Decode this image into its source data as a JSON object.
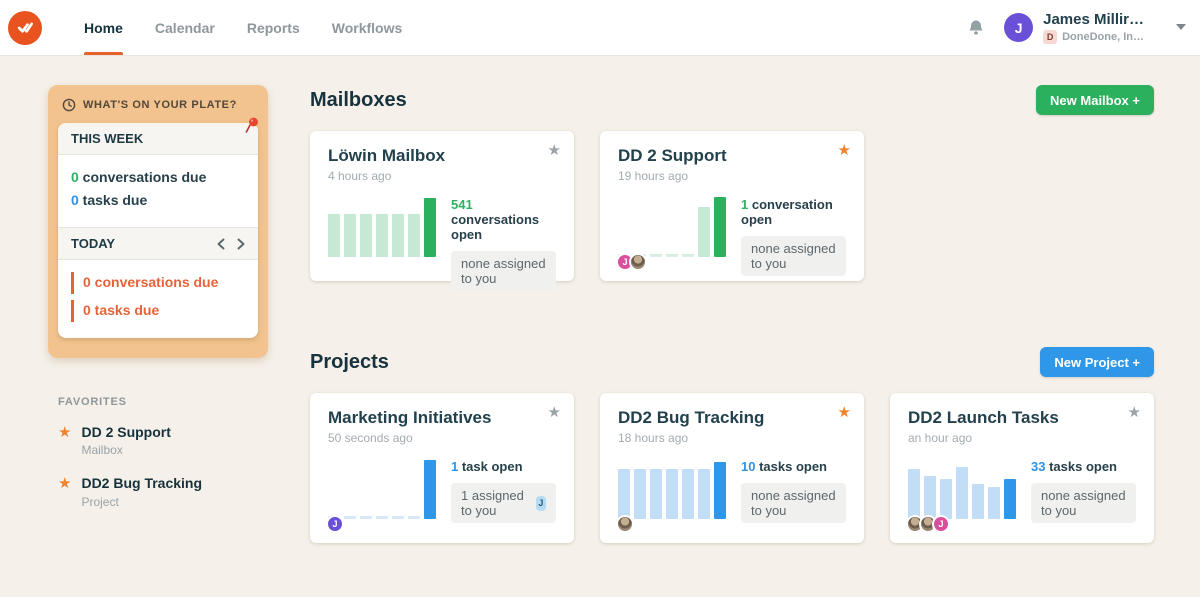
{
  "icons": {
    "star": "★",
    "caret_down": "▾"
  },
  "colors": {
    "accent_orange": "#e8602c",
    "accent_green": "#2bb05e",
    "accent_blue": "#2f97e8",
    "plate_bg": "#f2c38e",
    "avatar_purple": "#6a4fd7",
    "avatar_pink": "#d94f9e"
  },
  "header": {
    "nav": [
      {
        "label": "Home"
      },
      {
        "label": "Calendar"
      },
      {
        "label": "Reports"
      },
      {
        "label": "Workflows"
      }
    ],
    "user": {
      "initial": "J",
      "name": "James Millir…",
      "org_badge": "D",
      "org": "DoneDone, In…"
    }
  },
  "plate": {
    "title": "WHAT'S ON YOUR PLATE?",
    "this_week": {
      "label": "THIS WEEK",
      "items": [
        {
          "count": "0",
          "text": " conversations due"
        },
        {
          "count": "0",
          "text": " tasks due"
        }
      ]
    },
    "today": {
      "label": "TODAY",
      "items": [
        {
          "text": "0 conversations due"
        },
        {
          "text": "0 tasks due"
        }
      ]
    }
  },
  "favorites": {
    "label": "FAVORITES",
    "items": [
      {
        "title": "DD 2 Support",
        "type": "Mailbox"
      },
      {
        "title": "DD2 Bug Tracking",
        "type": "Project"
      }
    ]
  },
  "mailboxes": {
    "title": "Mailboxes",
    "button": "New Mailbox +",
    "cards": [
      {
        "title": "Löwin Mailbox",
        "time": "4 hours ago",
        "favorited": false,
        "stat_count": "541",
        "stat_text": " conversations open",
        "pill": "none assigned to you",
        "chart": {
          "bars": [
            {
              "t": "light",
              "h": 0.7
            },
            {
              "t": "light",
              "h": 0.7
            },
            {
              "t": "light",
              "h": 0.7
            },
            {
              "t": "light",
              "h": 0.7
            },
            {
              "t": "light",
              "h": 0.7
            },
            {
              "t": "light",
              "h": 0.7
            },
            {
              "t": "solid",
              "h": 0.95
            }
          ]
        },
        "avatars": []
      },
      {
        "title": "DD 2 Support",
        "time": "19 hours ago",
        "favorited": true,
        "stat_count": "1",
        "stat_text": " conversation open",
        "pill": "none assigned to you",
        "chart": {
          "bars": [
            {
              "t": "empty",
              "h": 0
            },
            {
              "t": "empty",
              "h": 0
            },
            {
              "t": "empty",
              "h": 0
            },
            {
              "t": "empty",
              "h": 0
            },
            {
              "t": "empty",
              "h": 0
            },
            {
              "t": "light",
              "h": 0.8
            },
            {
              "t": "solid",
              "h": 0.97
            }
          ]
        },
        "avatars": [
          {
            "kind": "initial",
            "letter": "J",
            "bg": "#d94f9e"
          },
          {
            "kind": "photo"
          }
        ]
      }
    ]
  },
  "projects": {
    "title": "Projects",
    "button": "New Project +",
    "cards": [
      {
        "title": "Marketing Initiatives",
        "time": "50 seconds ago",
        "favorited": false,
        "stat_count": "1",
        "stat_text": " task open",
        "pill": "1 assigned to you",
        "pill_badge": "J",
        "chart": {
          "bars": [
            {
              "t": "empty",
              "h": 0
            },
            {
              "t": "empty",
              "h": 0
            },
            {
              "t": "empty",
              "h": 0
            },
            {
              "t": "empty",
              "h": 0
            },
            {
              "t": "empty",
              "h": 0
            },
            {
              "t": "empty",
              "h": 0
            },
            {
              "t": "solid",
              "h": 0.95
            }
          ]
        },
        "avatars": [
          {
            "kind": "initial",
            "letter": "J",
            "bg": "#6a4fd7"
          }
        ]
      },
      {
        "title": "DD2 Bug Tracking",
        "time": "18 hours ago",
        "favorited": true,
        "stat_count": "10",
        "stat_text": " tasks open",
        "pill": "none assigned to you",
        "chart": {
          "bars": [
            {
              "t": "light",
              "h": 0.8
            },
            {
              "t": "light",
              "h": 0.8
            },
            {
              "t": "light",
              "h": 0.8
            },
            {
              "t": "light",
              "h": 0.8
            },
            {
              "t": "light",
              "h": 0.8
            },
            {
              "t": "light",
              "h": 0.8
            },
            {
              "t": "solid",
              "h": 0.92
            }
          ]
        },
        "avatars": [
          {
            "kind": "photo"
          }
        ]
      },
      {
        "title": "DD2 Launch Tasks",
        "time": "an hour ago",
        "favorited": false,
        "stat_count": "33",
        "stat_text": " tasks open",
        "pill": "none assigned to you",
        "chart": {
          "bars": [
            {
              "t": "light",
              "h": 0.8
            },
            {
              "t": "light",
              "h": 0.7
            },
            {
              "t": "light",
              "h": 0.64
            },
            {
              "t": "light",
              "h": 0.84
            },
            {
              "t": "light",
              "h": 0.56
            },
            {
              "t": "light",
              "h": 0.52
            },
            {
              "t": "solid",
              "h": 0.64
            }
          ]
        },
        "avatars": [
          {
            "kind": "photo"
          },
          {
            "kind": "photo"
          },
          {
            "kind": "initial",
            "letter": "J",
            "bg": "#d94f9e"
          }
        ]
      }
    ]
  }
}
